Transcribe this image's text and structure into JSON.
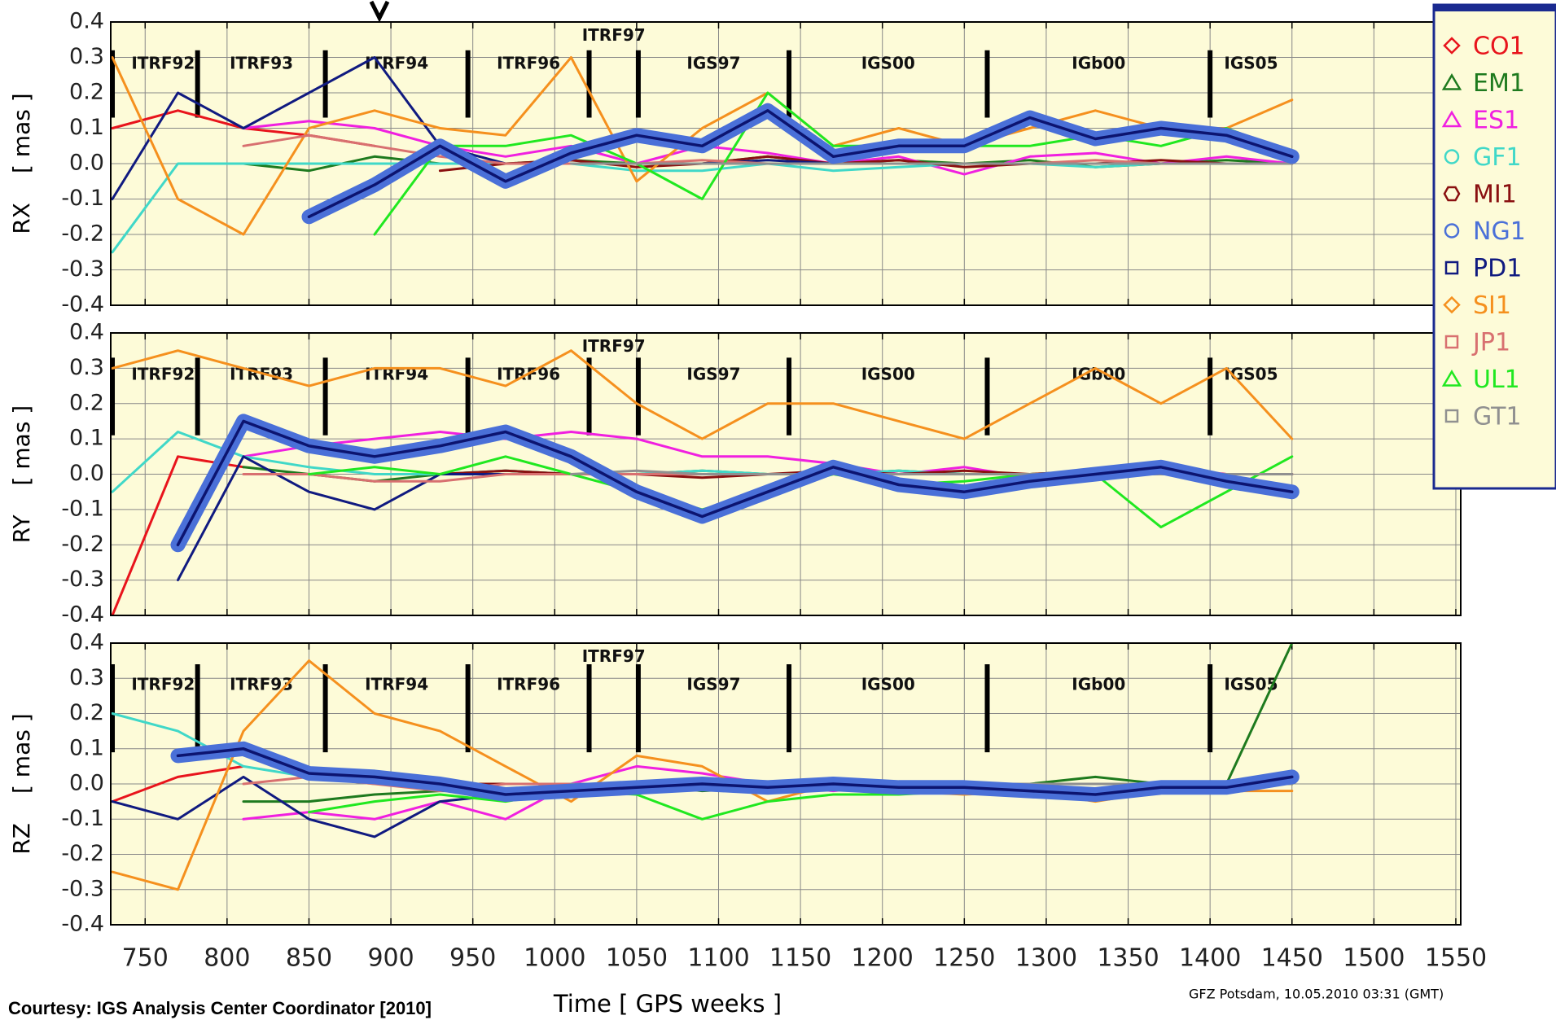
{
  "chart_data": {
    "type": "line",
    "x_label": "Time    [ GPS weeks ]",
    "y_unit": "[ mas ]",
    "footer_left": "Courtesy: IGS Analysis Center Coordinator [2010]",
    "footer_right": "GFZ Potsdam, 10.05.2010 03:31 (GMT)",
    "xlim": [
      729,
      1553
    ],
    "xticks": [
      750,
      800,
      850,
      900,
      950,
      1000,
      1050,
      1100,
      1150,
      1200,
      1250,
      1300,
      1350,
      1400,
      1450,
      1500,
      1550
    ],
    "grid": true,
    "highlight": "NG1",
    "reference_frames": [
      "ITRF92",
      "ITRF93",
      "ITRF94",
      "ITRF96",
      "ITRF97",
      "IGS97",
      "IGS00",
      "IGb00",
      "IGS05"
    ],
    "frame_boundaries": [
      730,
      782,
      860,
      947,
      1021,
      1051,
      1143,
      1264,
      1400
    ],
    "panels": [
      {
        "y_label": "RX",
        "ylim": [
          -0.4,
          0.4
        ],
        "yticks": [
          -0.4,
          -0.3,
          -0.2,
          -0.1,
          {
            "value": 0,
            "label": "0.0"
          },
          0.1,
          0.2,
          0.3,
          0.4
        ]
      },
      {
        "y_label": "RY",
        "ylim": [
          -0.4,
          0.4
        ],
        "yticks": [
          -0.4,
          -0.3,
          -0.2,
          -0.1,
          {
            "value": 0,
            "label": "0.0"
          },
          0.1,
          0.2,
          0.3,
          0.4
        ]
      },
      {
        "y_label": "RZ",
        "ylim": [
          -0.4,
          0.4
        ],
        "yticks": [
          -0.4,
          -0.3,
          -0.2,
          -0.1,
          {
            "value": 0,
            "label": "0.0"
          },
          0.1,
          0.2,
          0.3,
          0.4
        ]
      }
    ],
    "x": [
      730,
      770,
      810,
      850,
      890,
      930,
      970,
      1010,
      1050,
      1090,
      1130,
      1170,
      1210,
      1250,
      1290,
      1330,
      1370,
      1410,
      1450
    ],
    "series": [
      {
        "name": "CO1",
        "color": "#e8141c",
        "marker": "diamond",
        "values": [
          [
            0.1,
            0.15,
            0.1,
            0.08,
            0.05,
            null,
            null,
            null,
            null,
            null,
            null,
            null,
            null,
            null,
            null,
            null,
            null,
            null,
            null
          ],
          [
            -0.4,
            0.05,
            0.02,
            null,
            null,
            null,
            null,
            null,
            null,
            null,
            null,
            null,
            null,
            null,
            null,
            null,
            null,
            null,
            null
          ],
          [
            -0.05,
            0.02,
            0.05,
            null,
            null,
            null,
            null,
            null,
            null,
            null,
            null,
            null,
            null,
            null,
            null,
            null,
            null,
            null,
            null
          ]
        ]
      },
      {
        "name": "EM1",
        "color": "#1e7a1e",
        "marker": "triangle",
        "values": [
          [
            null,
            null,
            0.0,
            -0.02,
            0.02,
            0.0,
            0.0,
            0.01,
            0.0,
            0.0,
            0.02,
            0.0,
            0.01,
            0.0,
            0.01,
            -0.01,
            0.0,
            0.01,
            0.0
          ],
          [
            null,
            null,
            0.02,
            0.0,
            -0.02,
            0.0,
            0.01,
            0.0,
            0.0,
            0.01,
            0.0,
            0.0,
            0.01,
            0.0,
            0.0,
            0.01,
            0.0,
            0.0,
            0.0
          ],
          [
            null,
            null,
            -0.05,
            -0.05,
            -0.03,
            -0.02,
            -0.02,
            0.0,
            0.0,
            -0.02,
            -0.01,
            0.0,
            -0.02,
            -0.02,
            0.0,
            0.02,
            0.0,
            0.0,
            0.4
          ]
        ]
      },
      {
        "name": "ES1",
        "color": "#f020e0",
        "marker": "triangle",
        "values": [
          [
            null,
            null,
            0.1,
            0.12,
            0.1,
            0.05,
            0.02,
            0.05,
            0.0,
            0.05,
            0.03,
            0.0,
            0.02,
            -0.03,
            0.02,
            0.03,
            0.0,
            0.02,
            0.0
          ],
          [
            null,
            null,
            0.05,
            0.08,
            0.1,
            0.12,
            0.1,
            0.12,
            0.1,
            0.05,
            0.05,
            0.03,
            0.0,
            0.02,
            -0.01,
            0.0,
            0.02,
            0.0,
            0.0
          ],
          [
            null,
            null,
            -0.1,
            -0.08,
            -0.1,
            -0.05,
            -0.1,
            0.0,
            0.05,
            0.03,
            0.0,
            -0.02,
            0.0,
            -0.01,
            0.0,
            0.0,
            0.0,
            0.0,
            0.0
          ]
        ]
      },
      {
        "name": "GF1",
        "color": "#40d8c8",
        "marker": "circle",
        "values": [
          [
            -0.25,
            0.0,
            0.0,
            0.0,
            0.0,
            0.0,
            0.0,
            0.0,
            -0.02,
            -0.02,
            0.0,
            -0.02,
            -0.01,
            0.0,
            0.0,
            -0.01,
            0.0,
            0.0,
            0.0
          ],
          [
            -0.05,
            0.12,
            0.05,
            0.02,
            0.0,
            0.0,
            0.01,
            0.0,
            0.0,
            0.01,
            0.0,
            0.0,
            0.01,
            0.0,
            0.0,
            0.0,
            0.0,
            0.0,
            0.0
          ],
          [
            0.2,
            0.15,
            0.05,
            0.02,
            0.0,
            0.0,
            0.0,
            0.0,
            0.0,
            0.0,
            0.0,
            0.0,
            0.0,
            0.0,
            0.0,
            0.0,
            0.0,
            0.0,
            0.0
          ]
        ]
      },
      {
        "name": "MI1",
        "color": "#8a1010",
        "marker": "hexagon",
        "values": [
          [
            null,
            null,
            null,
            null,
            null,
            -0.02,
            0.0,
            0.01,
            -0.01,
            0.0,
            0.02,
            0.0,
            0.01,
            -0.01,
            0.0,
            0.0,
            0.01,
            0.0,
            0.0
          ],
          [
            null,
            null,
            null,
            null,
            null,
            0.0,
            0.01,
            0.0,
            0.0,
            -0.01,
            0.0,
            0.01,
            0.0,
            0.01,
            0.0,
            0.01,
            0.01,
            0.0,
            0.0
          ],
          [
            null,
            null,
            null,
            null,
            null,
            0.0,
            0.0,
            0.0,
            0.0,
            0.0,
            0.0,
            0.0,
            0.0,
            0.0,
            0.0,
            0.0,
            0.0,
            0.0,
            0.0
          ]
        ]
      },
      {
        "name": "NG1",
        "color": "#4a70d8",
        "marker": "circle",
        "values": [
          [
            null,
            null,
            null,
            -0.15,
            -0.06,
            0.05,
            -0.05,
            0.03,
            0.08,
            0.05,
            0.15,
            0.02,
            0.05,
            0.05,
            0.13,
            0.07,
            0.1,
            0.08,
            0.02
          ],
          [
            null,
            -0.2,
            0.15,
            0.08,
            0.05,
            0.08,
            0.12,
            0.05,
            -0.05,
            -0.12,
            -0.05,
            0.02,
            -0.03,
            -0.05,
            -0.02,
            0.0,
            0.02,
            -0.02,
            -0.05
          ],
          [
            null,
            0.08,
            0.1,
            0.03,
            0.02,
            0.0,
            -0.03,
            -0.02,
            -0.01,
            0.0,
            -0.01,
            0.0,
            -0.01,
            -0.01,
            -0.02,
            -0.03,
            -0.01,
            -0.01,
            0.02
          ]
        ]
      },
      {
        "name": "PD1",
        "color": "#101a80",
        "marker": "square",
        "values": [
          [
            -0.1,
            0.2,
            0.1,
            0.2,
            0.3,
            0.05,
            0.0,
            0.0,
            0.0,
            0.0,
            0.01,
            0.0,
            null,
            null,
            null,
            null,
            null,
            null,
            null
          ],
          [
            null,
            -0.3,
            0.05,
            -0.05,
            -0.1,
            0.0,
            0.0,
            0.0,
            null,
            null,
            null,
            null,
            null,
            null,
            null,
            null,
            null,
            null,
            null
          ],
          [
            -0.05,
            -0.1,
            0.02,
            -0.1,
            -0.15,
            -0.05,
            -0.03,
            null,
            null,
            null,
            null,
            null,
            null,
            null,
            null,
            null,
            null,
            null,
            null
          ]
        ]
      },
      {
        "name": "SI1",
        "color": "#f5901e",
        "marker": "diamond",
        "values": [
          [
            0.3,
            -0.1,
            -0.2,
            0.1,
            0.15,
            0.1,
            0.08,
            0.3,
            -0.05,
            0.1,
            0.2,
            0.05,
            0.1,
            0.05,
            0.1,
            0.15,
            0.1,
            0.1,
            0.18
          ],
          [
            0.3,
            0.35,
            0.3,
            0.25,
            0.3,
            0.3,
            0.25,
            0.35,
            0.2,
            0.1,
            0.2,
            0.2,
            0.15,
            0.1,
            0.2,
            0.3,
            0.2,
            0.3,
            0.1
          ],
          [
            -0.25,
            -0.3,
            0.15,
            0.35,
            0.2,
            0.15,
            0.05,
            -0.05,
            0.08,
            0.05,
            -0.05,
            0.0,
            -0.02,
            -0.03,
            -0.02,
            -0.05,
            -0.02,
            -0.02,
            -0.02
          ]
        ]
      },
      {
        "name": "JP1",
        "color": "#d87070",
        "marker": "square",
        "values": [
          [
            null,
            null,
            0.05,
            0.08,
            0.05,
            0.02,
            0.0,
            0.0,
            0.0,
            0.01,
            0.0,
            0.0,
            0.0,
            0.0,
            0.0,
            0.01,
            0.0,
            0.0,
            0.0
          ],
          [
            null,
            null,
            0.0,
            0.0,
            -0.02,
            -0.02,
            0.0,
            0.0,
            0.0,
            0.0,
            0.0,
            0.0,
            0.0,
            0.0,
            0.0,
            0.0,
            0.0,
            0.0,
            0.0
          ],
          [
            null,
            null,
            0.0,
            0.02,
            0.0,
            -0.02,
            0.0,
            0.0,
            0.0,
            0.0,
            0.0,
            0.0,
            0.0,
            0.0,
            0.0,
            0.0,
            0.0,
            0.0,
            0.01
          ]
        ]
      },
      {
        "name": "UL1",
        "color": "#20e820",
        "marker": "triangle",
        "values": [
          [
            null,
            null,
            null,
            null,
            -0.2,
            0.05,
            0.05,
            0.08,
            0.0,
            -0.1,
            0.2,
            0.05,
            0.05,
            0.05,
            0.05,
            0.08,
            0.05,
            0.1,
            0.03
          ],
          [
            null,
            null,
            null,
            0.0,
            0.02,
            0.0,
            0.05,
            0.0,
            -0.05,
            -0.1,
            -0.05,
            0.0,
            -0.03,
            -0.02,
            0.0,
            0.0,
            -0.15,
            -0.05,
            0.05
          ],
          [
            null,
            null,
            null,
            -0.08,
            -0.05,
            -0.03,
            -0.05,
            -0.02,
            -0.03,
            -0.1,
            -0.05,
            -0.03,
            -0.03,
            -0.02,
            -0.02,
            -0.02,
            0.0,
            0.0,
            0.0
          ]
        ]
      },
      {
        "name": "GT1",
        "color": "#909090",
        "marker": "square",
        "values": [
          [
            null,
            null,
            null,
            null,
            null,
            null,
            null,
            0.0,
            0.0,
            0.0,
            0.0,
            0.0,
            0.0,
            0.0,
            0.0,
            0.0,
            0.0,
            0.0,
            0.0
          ],
          [
            null,
            null,
            null,
            null,
            null,
            null,
            null,
            0.0,
            0.01,
            0.0,
            0.0,
            0.0,
            0.0,
            0.0,
            0.0,
            0.0,
            0.0,
            0.0,
            0.0
          ],
          [
            null,
            null,
            null,
            null,
            null,
            null,
            null,
            0.0,
            0.0,
            0.0,
            0.0,
            0.0,
            0.0,
            0.0,
            0.0,
            0.0,
            0.0,
            0.0,
            0.0
          ]
        ]
      }
    ]
  }
}
